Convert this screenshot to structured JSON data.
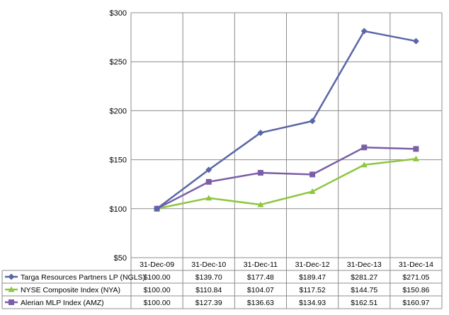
{
  "chart_data": {
    "type": "line",
    "categories": [
      "31-Dec-09",
      "31-Dec-10",
      "31-Dec-11",
      "31-Dec-12",
      "31-Dec-13",
      "31-Dec-14"
    ],
    "ylim": [
      50,
      300
    ],
    "y_ticks": [
      50,
      100,
      150,
      200,
      250,
      300
    ],
    "y_tick_labels": [
      "$50",
      "$100",
      "$150",
      "$200",
      "$250",
      "$300"
    ],
    "grid": true,
    "legend": "data-table-below",
    "series": [
      {
        "name": "Targa Resources Partners LP (NGLS)",
        "marker": "diamond",
        "color": "#5a66a8",
        "values": [
          100.0,
          139.7,
          177.48,
          189.47,
          281.27,
          271.05
        ],
        "labels": [
          "$100.00",
          "$139.70",
          "$177.48",
          "$189.47",
          "$281.27",
          "$271.05"
        ]
      },
      {
        "name": "NYSE Composite Index (NYA)",
        "marker": "triangle",
        "color": "#8ec63f",
        "values": [
          100.0,
          110.84,
          104.07,
          117.52,
          144.75,
          150.86
        ],
        "labels": [
          "$100.00",
          "$110.84",
          "$104.07",
          "$117.52",
          "$144.75",
          "$150.86"
        ]
      },
      {
        "name": "Alerian MLP Index (AMZ)",
        "marker": "square",
        "color": "#7b5ea7",
        "values": [
          100.0,
          127.39,
          136.63,
          134.93,
          162.51,
          160.97
        ],
        "labels": [
          "$100.00",
          "$127.39",
          "$136.63",
          "$134.93",
          "$162.51",
          "$160.97"
        ]
      }
    ]
  }
}
